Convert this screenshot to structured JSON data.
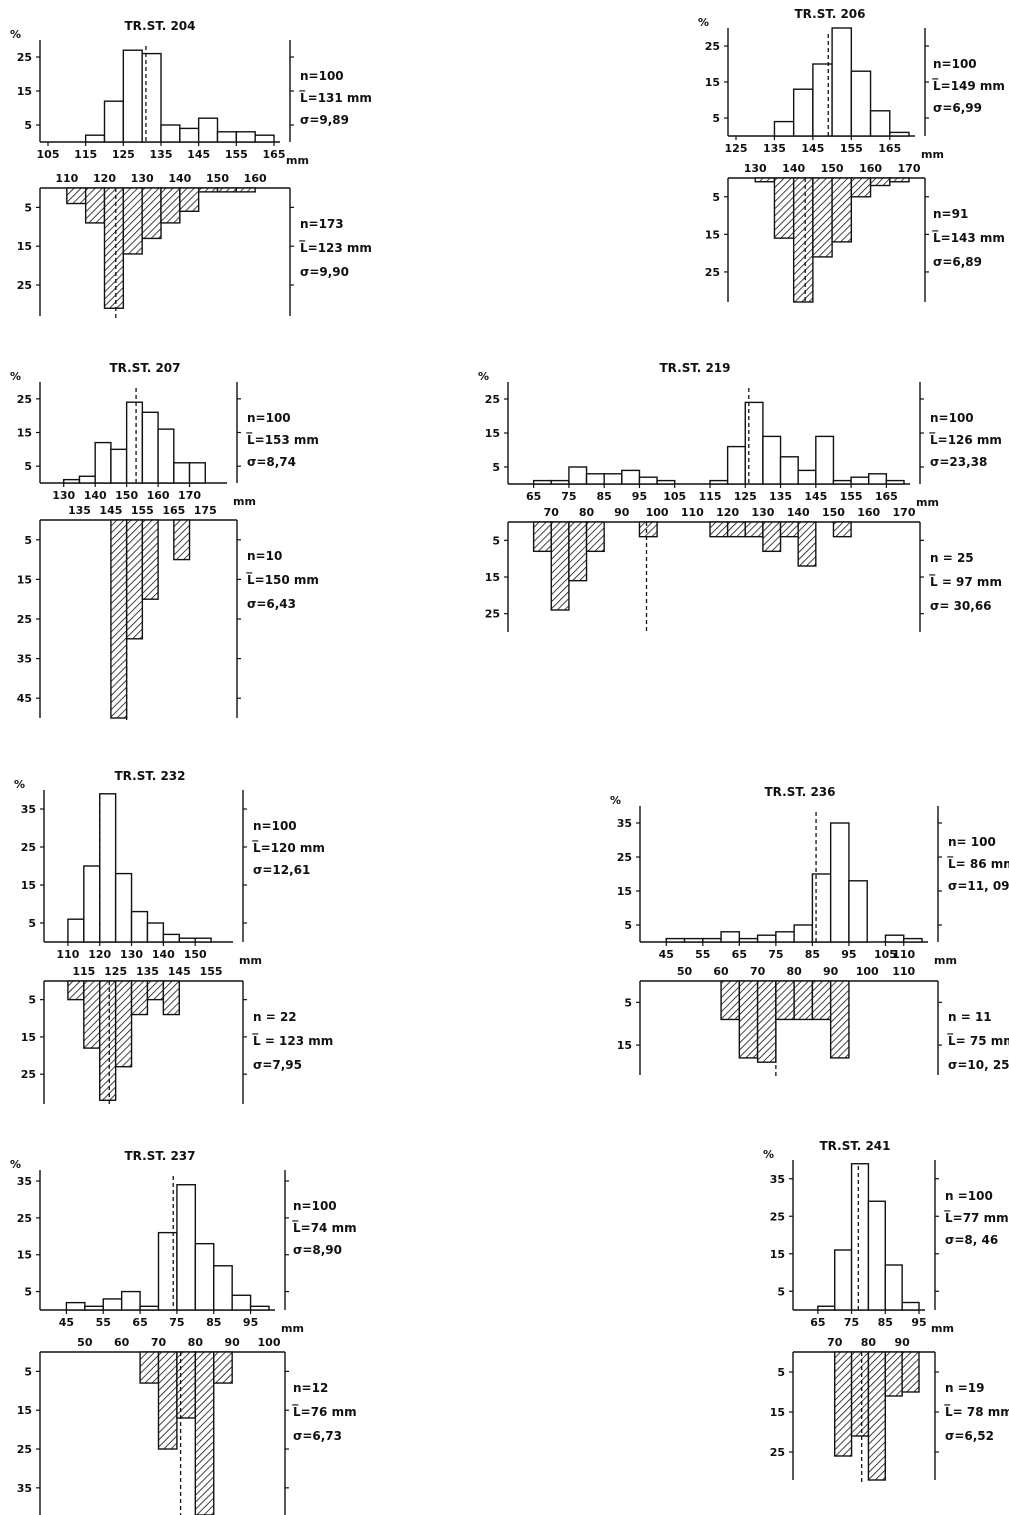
{
  "chart_data": [
    {
      "type": "bar",
      "title": "TR.ST. 204",
      "ylabel": "%",
      "xunit": "mm",
      "top": {
        "x": [
          115,
          120,
          125,
          130,
          135,
          140,
          145,
          150,
          155,
          160
        ],
        "values": [
          2,
          12,
          27,
          26,
          5,
          4,
          7,
          3,
          3,
          2
        ],
        "ylim": [
          0,
          30
        ],
        "yticks": [
          5,
          15,
          25
        ],
        "xlim": [
          105,
          165
        ],
        "xticks": [
          105,
          115,
          125,
          135,
          145,
          155,
          165
        ],
        "mean": 131,
        "stats": [
          "n=100",
          "L̅=131  mm",
          "σ=9,89"
        ]
      },
      "bottom": {
        "x": [
          110,
          115,
          120,
          125,
          130,
          135,
          140,
          145,
          150,
          155
        ],
        "values": [
          4,
          9,
          31,
          17,
          13,
          9,
          6,
          1,
          1,
          1
        ],
        "ylim": [
          0,
          33
        ],
        "yticks": [
          5,
          15,
          25
        ],
        "xticks": [
          110,
          120,
          130,
          140,
          150,
          160
        ],
        "mean": 123,
        "stats": [
          "n=173",
          "L̅=123 mm",
          "σ=9,90"
        ]
      }
    },
    {
      "type": "bar",
      "title": "TR.ST. 206",
      "ylabel": "%",
      "xunit": "mm",
      "top": {
        "x": [
          135,
          140,
          145,
          150,
          155,
          160,
          165
        ],
        "values": [
          4,
          13,
          20,
          30,
          18,
          7,
          1
        ],
        "ylim": [
          0,
          30
        ],
        "yticks": [
          5,
          15,
          25
        ],
        "xlim": [
          125,
          170
        ],
        "xticks": [
          125,
          135,
          145,
          155,
          165
        ],
        "mean": 149,
        "stats": [
          "n=100",
          "L̅=149 mm",
          "σ=6,99"
        ]
      },
      "bottom": {
        "x": [
          130,
          135,
          140,
          145,
          150,
          155,
          160,
          165
        ],
        "values": [
          1,
          16,
          33,
          21,
          17,
          5,
          2,
          1
        ],
        "ylim": [
          0,
          33
        ],
        "yticks": [
          5,
          15,
          25
        ],
        "xticks": [
          130,
          140,
          150,
          160,
          170
        ],
        "mean": 143,
        "stats": [
          "n=91",
          "L̅=143 mm",
          "σ=6,89"
        ]
      }
    },
    {
      "type": "bar",
      "title": "TR.ST. 207",
      "ylabel": "%",
      "xunit": "mm",
      "top": {
        "x": [
          130,
          135,
          140,
          145,
          150,
          155,
          160,
          165,
          170
        ],
        "values": [
          1,
          2,
          12,
          10,
          24,
          21,
          16,
          6,
          6
        ],
        "ylim": [
          0,
          30
        ],
        "yticks": [
          5,
          15,
          25
        ],
        "xlim": [
          125,
          180
        ],
        "xticks": [
          130,
          140,
          150,
          160,
          170
        ],
        "mean": 153,
        "stats": [
          "n=100",
          "L̅=153 mm",
          "σ=8,74"
        ]
      },
      "bottom": {
        "x": [
          145,
          150,
          155,
          160,
          165,
          170
        ],
        "values": [
          50,
          30,
          20,
          0,
          10,
          0
        ],
        "ylim": [
          0,
          50
        ],
        "yticks": [
          5,
          15,
          25,
          35,
          45
        ],
        "xticks": [
          135,
          145,
          155,
          165,
          175
        ],
        "mean": 150,
        "stats": [
          "n=10",
          "L̅=150 mm",
          "σ=6,43"
        ]
      }
    },
    {
      "type": "bar",
      "title": "TR.ST. 219",
      "ylabel": "%",
      "xunit": "mm",
      "top": {
        "x": [
          65,
          70,
          75,
          80,
          85,
          90,
          95,
          100,
          105,
          110,
          115,
          120,
          125,
          130,
          135,
          140,
          145,
          150,
          155,
          160,
          165
        ],
        "values": [
          1,
          1,
          5,
          3,
          3,
          4,
          2,
          1,
          0,
          0,
          1,
          11,
          24,
          14,
          8,
          4,
          14,
          1,
          2,
          3,
          1
        ],
        "ylim": [
          0,
          30
        ],
        "yticks": [
          5,
          15,
          25
        ],
        "xlim": [
          60,
          170
        ],
        "xticks": [
          65,
          75,
          85,
          95,
          105,
          115,
          125,
          135,
          145,
          155,
          165
        ],
        "mean": 126,
        "stats": [
          "n=100",
          "L̅=126 mm",
          "σ=23,38"
        ]
      },
      "bottom": {
        "x": [
          65,
          70,
          75,
          80,
          85,
          90,
          95,
          100,
          105,
          110,
          115,
          120,
          125,
          130,
          135,
          140,
          145,
          150
        ],
        "values": [
          8,
          24,
          16,
          8,
          0,
          0,
          4,
          0,
          0,
          0,
          4,
          4,
          4,
          8,
          4,
          12,
          0,
          4
        ],
        "ylim": [
          0,
          30
        ],
        "yticks": [
          5,
          15,
          25
        ],
        "xticks": [
          70,
          80,
          90,
          100,
          110,
          120,
          130,
          140,
          150,
          160,
          170
        ],
        "mean": 97,
        "stats": [
          "n = 25",
          "L̅ = 97 mm",
          "σ= 30,66"
        ]
      }
    },
    {
      "type": "bar",
      "title": "TR.ST. 232",
      "ylabel": "%",
      "xunit": "mm",
      "top": {
        "x": [
          110,
          115,
          120,
          125,
          130,
          135,
          140,
          145,
          150
        ],
        "values": [
          6,
          20,
          39,
          18,
          8,
          5,
          2,
          1,
          1
        ],
        "ylim": [
          0,
          40
        ],
        "yticks": [
          5,
          15,
          25,
          35
        ],
        "xlim": [
          105,
          160
        ],
        "xticks": [
          110,
          120,
          130,
          140,
          150
        ],
        "mean": 120,
        "stats": [
          "n=100",
          "L̅=120 mm",
          "σ=12,61"
        ]
      },
      "bottom": {
        "x": [
          110,
          115,
          120,
          125,
          130,
          135,
          140
        ],
        "values": [
          5,
          18,
          32,
          23,
          9,
          5,
          9
        ],
        "ylim": [
          0,
          33
        ],
        "yticks": [
          5,
          15,
          25
        ],
        "xticks": [
          115,
          125,
          135,
          145,
          155
        ],
        "mean": 123,
        "stats": [
          "n = 22",
          "L̅ = 123 mm",
          "σ=7,95"
        ]
      }
    },
    {
      "type": "bar",
      "title": "TR.ST. 236",
      "ylabel": "%",
      "xunit": "mm",
      "top": {
        "x": [
          45,
          50,
          55,
          60,
          65,
          70,
          75,
          80,
          85,
          90,
          95,
          100,
          105,
          110
        ],
        "values": [
          1,
          1,
          1,
          3,
          1,
          2,
          3,
          5,
          20,
          35,
          18,
          0,
          2,
          1
        ],
        "ylim": [
          0,
          40
        ],
        "yticks": [
          5,
          15,
          25,
          35
        ],
        "xlim": [
          40,
          115
        ],
        "xticks": [
          45,
          55,
          65,
          75,
          85,
          95,
          105,
          110
        ],
        "mean": 86,
        "stats": [
          "n= 100",
          "L̅= 86  mm",
          "σ=11, 09"
        ]
      },
      "bottom": {
        "x": [
          60,
          65,
          70,
          75,
          80,
          85,
          90
        ],
        "values": [
          9,
          18,
          19,
          9,
          9,
          9,
          18
        ],
        "ylim": [
          0,
          22
        ],
        "yticks": [
          5,
          15
        ],
        "xticks": [
          50,
          60,
          70,
          80,
          90,
          100,
          110
        ],
        "mean": 75,
        "stats": [
          "n = 11",
          "L̅= 75 mm",
          "σ=10, 25"
        ]
      }
    },
    {
      "type": "bar",
      "title": "TR.ST. 237",
      "ylabel": "%",
      "xunit": "mm",
      "top": {
        "x": [
          45,
          50,
          55,
          60,
          65,
          70,
          75,
          80,
          85,
          90,
          95
        ],
        "values": [
          2,
          1,
          3,
          5,
          1,
          21,
          34,
          18,
          12,
          4,
          1
        ],
        "ylim": [
          0,
          38
        ],
        "yticks": [
          5,
          15,
          25,
          35
        ],
        "xlim": [
          40,
          100
        ],
        "xticks": [
          45,
          55,
          65,
          75,
          85,
          95
        ],
        "mean": 74,
        "stats": [
          "n=100",
          "L̅=74 mm",
          "σ=8,90"
        ]
      },
      "bottom": {
        "x": [
          65,
          70,
          75,
          80,
          85
        ],
        "values": [
          8,
          25,
          17,
          42,
          8
        ],
        "ylim": [
          0,
          42
        ],
        "yticks": [
          5,
          15,
          25,
          35
        ],
        "xticks": [
          50,
          60,
          70,
          80,
          90,
          100
        ],
        "mean": 76,
        "stats": [
          "n=12",
          "L̅=76 mm",
          "σ=6,73"
        ]
      }
    },
    {
      "type": "bar",
      "title": "TR.ST. 241",
      "ylabel": "%",
      "xunit": "mm",
      "top": {
        "x": [
          65,
          70,
          75,
          80,
          85,
          90
        ],
        "values": [
          1,
          16,
          39,
          29,
          12,
          2
        ],
        "ylim": [
          0,
          40
        ],
        "yticks": [
          5,
          15,
          25,
          35
        ],
        "xlim": [
          60,
          95
        ],
        "xticks": [
          65,
          75,
          85,
          95
        ],
        "mean": 77,
        "stats": [
          "n =100",
          "L̅=77 mm",
          "σ=8, 46"
        ]
      },
      "bottom": {
        "x": [
          70,
          75,
          80,
          85,
          90
        ],
        "values": [
          26,
          21,
          32,
          11,
          10
        ],
        "ylim": [
          0,
          32
        ],
        "yticks": [
          5,
          15,
          25
        ],
        "xticks": [
          70,
          80,
          90
        ],
        "mean": 78,
        "stats": [
          "n =19",
          "L̅= 78 mm",
          "σ=6,52"
        ]
      }
    }
  ]
}
